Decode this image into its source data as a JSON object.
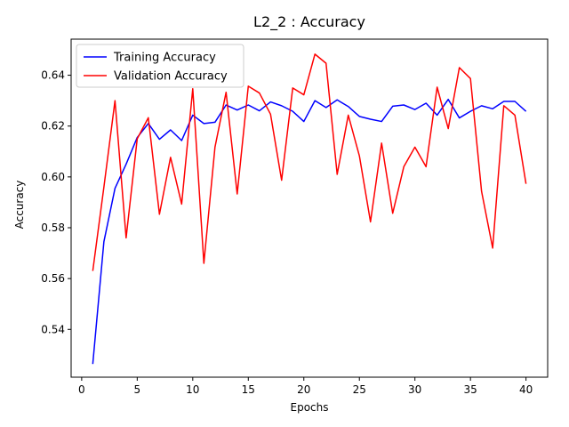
{
  "chart_data": {
    "type": "line",
    "title": "L2_2 : Accuracy",
    "xlabel": "Epochs",
    "ylabel": "Accuracy",
    "xlim": [
      -0.95,
      41.95
    ],
    "ylim": [
      0.5212,
      0.6542
    ],
    "xticks": [
      0,
      5,
      10,
      15,
      20,
      25,
      30,
      35,
      40
    ],
    "yticks": [
      0.54,
      0.56,
      0.58,
      0.6,
      0.62,
      0.64
    ],
    "ytick_labels": [
      "0.54",
      "0.56",
      "0.58",
      "0.60",
      "0.62",
      "0.64"
    ],
    "legend": "top-left",
    "grid": false,
    "x": [
      1,
      2,
      3,
      4,
      5,
      6,
      7,
      8,
      9,
      10,
      11,
      12,
      13,
      14,
      15,
      16,
      17,
      18,
      19,
      20,
      21,
      22,
      23,
      24,
      25,
      26,
      27,
      28,
      29,
      30,
      31,
      32,
      33,
      34,
      35,
      36,
      37,
      38,
      39,
      40
    ],
    "series": [
      {
        "name": "Training Accuracy",
        "color": "#0000ff",
        "values": [
          0.5264,
          0.5745,
          0.5955,
          0.605,
          0.6155,
          0.621,
          0.6148,
          0.6185,
          0.6143,
          0.6243,
          0.621,
          0.6215,
          0.6283,
          0.6263,
          0.6283,
          0.626,
          0.6295,
          0.628,
          0.6258,
          0.6218,
          0.63,
          0.6273,
          0.6303,
          0.6277,
          0.6238,
          0.6227,
          0.6218,
          0.6278,
          0.6283,
          0.6265,
          0.629,
          0.6243,
          0.6305,
          0.6232,
          0.6258,
          0.628,
          0.6268,
          0.6297,
          0.6297,
          0.6258
        ]
      },
      {
        "name": "Validation Accuracy",
        "color": "#ff0000",
        "values": [
          0.563,
          0.596,
          0.63,
          0.576,
          0.615,
          0.6233,
          0.5853,
          0.6077,
          0.5893,
          0.6347,
          0.566,
          0.6117,
          0.6333,
          0.5933,
          0.6357,
          0.633,
          0.6247,
          0.5987,
          0.635,
          0.6323,
          0.6483,
          0.6447,
          0.601,
          0.6243,
          0.6083,
          0.5823,
          0.6133,
          0.5857,
          0.604,
          0.6117,
          0.604,
          0.6353,
          0.619,
          0.643,
          0.6387,
          0.5943,
          0.572,
          0.628,
          0.6243,
          0.5973
        ]
      }
    ]
  }
}
